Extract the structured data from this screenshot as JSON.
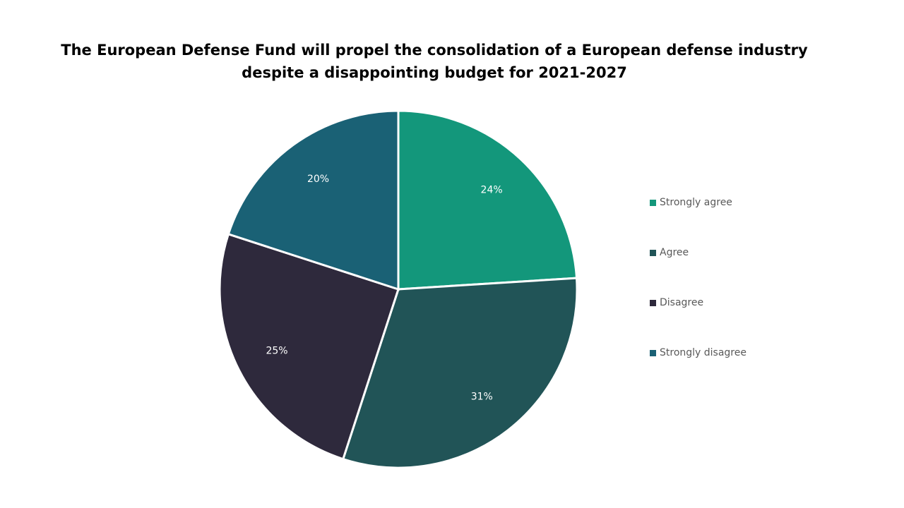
{
  "chart_data": {
    "type": "pie",
    "title": "The European Defense Fund will propel the consolidation of a European defense industry despite a disappointing budget for 2021-2027",
    "categories": [
      "Strongly agree",
      "Agree",
      "Disagree",
      "Strongly disagree"
    ],
    "values": [
      24,
      31,
      25,
      20
    ],
    "data_labels": [
      "24%",
      "31%",
      "25%",
      "20%"
    ],
    "colors": [
      "#13977b",
      "#215457",
      "#2e293c",
      "#1a6175"
    ],
    "legend_position": "right",
    "start_angle": "12 o'clock",
    "direction": "clockwise"
  }
}
